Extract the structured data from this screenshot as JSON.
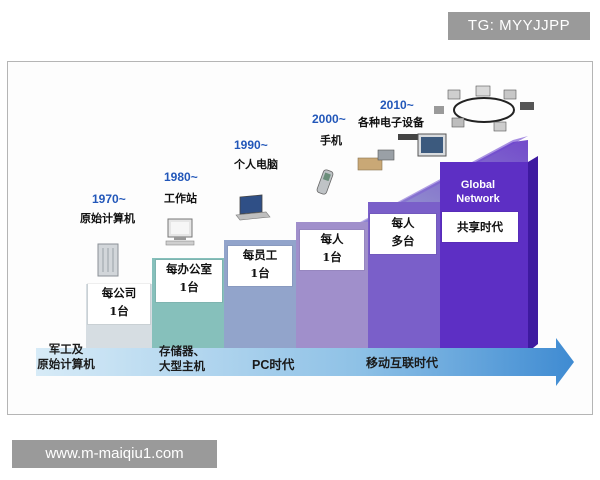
{
  "watermarks": {
    "top": "TG: MYYJJPP",
    "bottom": "www.m-maiqiu1.com"
  },
  "eras": [
    {
      "year": "1970~",
      "device": "原始计算机",
      "box": [
        "每公司",
        "1台"
      ]
    },
    {
      "year": "1980~",
      "device": "工作站",
      "box": [
        "每办公室",
        "1台"
      ]
    },
    {
      "year": "1990~",
      "device": "个人电脑",
      "box": [
        "每员工",
        "1台"
      ]
    },
    {
      "year": "2000~",
      "device": "手机",
      "box": [
        "每人",
        "1台"
      ]
    },
    {
      "year": "2010~",
      "device": "各种电子设备",
      "box": [
        "每人",
        "多台"
      ]
    }
  ],
  "final_box": "共享时代",
  "global_label": [
    "Global",
    "Network"
  ],
  "arrow_labels": {
    "left": [
      "军工及",
      "原始计算机"
    ],
    "storage": [
      "存储器、",
      "大型主机"
    ],
    "pc": "PC时代",
    "mobile": "移动互联时代"
  },
  "colors": {
    "arrow": "#4a95d6",
    "arrow_light": "#cfe6f5",
    "band1": "#c9d4da",
    "band2": "#7fb8b4",
    "band3": "#8e9ec7",
    "band4": "#9a88c8",
    "band5": "#6e52c4",
    "band6": "#5a2bc2",
    "year": "#2257b9"
  },
  "icons": [
    "mainframe-icon",
    "workstation-icon",
    "laptop-icon",
    "phone-icon",
    "electronics-icon",
    "network-ring-icon"
  ]
}
